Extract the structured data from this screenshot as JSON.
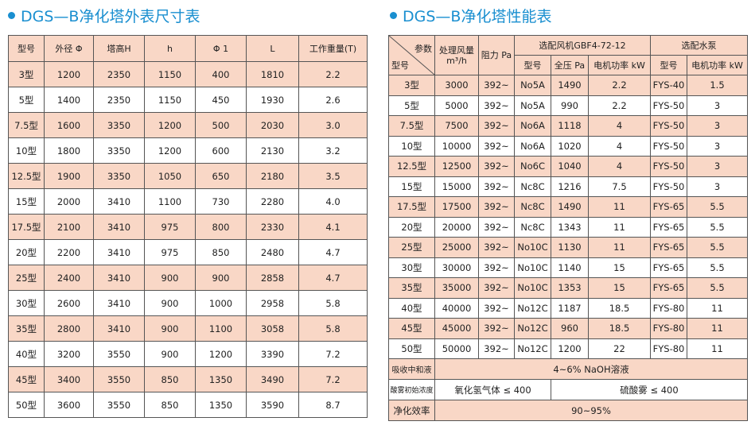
{
  "table1": {
    "title": "DGS—B净化塔外表尺寸表",
    "headers": [
      "型号",
      "外径 Φ",
      "塔高H",
      "h",
      "Φ 1",
      "L",
      "工作重量(T)"
    ],
    "rows": [
      [
        "3型",
        "1200",
        "2350",
        "1150",
        "400",
        "1810",
        "2.2"
      ],
      [
        "5型",
        "1400",
        "2350",
        "1150",
        "450",
        "1930",
        "2.6"
      ],
      [
        "7.5型",
        "1600",
        "3350",
        "1200",
        "500",
        "2030",
        "3.0"
      ],
      [
        "10型",
        "1800",
        "3350",
        "1200",
        "600",
        "2130",
        "3.2"
      ],
      [
        "12.5型",
        "1900",
        "3350",
        "1050",
        "650",
        "2180",
        "3.5"
      ],
      [
        "15型",
        "2000",
        "3410",
        "1100",
        "730",
        "2280",
        "4.0"
      ],
      [
        "17.5型",
        "2100",
        "3410",
        "975",
        "800",
        "2330",
        "4.1"
      ],
      [
        "20型",
        "2200",
        "3410",
        "975",
        "850",
        "2480",
        "4.7"
      ],
      [
        "25型",
        "2400",
        "3410",
        "900",
        "900",
        "2858",
        "4.7"
      ],
      [
        "30型",
        "2600",
        "3410",
        "900",
        "1000",
        "2958",
        "5.8"
      ],
      [
        "35型",
        "2800",
        "3410",
        "900",
        "1100",
        "3058",
        "5.8"
      ],
      [
        "40型",
        "3200",
        "3550",
        "900",
        "1200",
        "3390",
        "7.2"
      ],
      [
        "45型",
        "3400",
        "3550",
        "850",
        "1350",
        "3490",
        "7.2"
      ],
      [
        "50型",
        "3600",
        "3550",
        "850",
        "1350",
        "3590",
        "8.7"
      ]
    ]
  },
  "table2": {
    "title": "DGS—B净化塔性能表",
    "corner_top": "参数",
    "corner_bottom": "型号",
    "col_air": "处理风量 m³/h",
    "col_resist": "阻力 Pa",
    "group_fan": "选配风机GBF4-72-12",
    "group_pump": "选配水泵",
    "sub_headers": [
      "型号",
      "全压 Pa",
      "电机功率 kW",
      "型号",
      "电机功率 kW"
    ],
    "rows": [
      [
        "3型",
        "3000",
        "392~",
        "No5A",
        "1490",
        "2.2",
        "FYS-40",
        "1.5"
      ],
      [
        "5型",
        "5000",
        "392~",
        "No5A",
        "990",
        "2.2",
        "FYS-50",
        "3"
      ],
      [
        "7.5型",
        "7500",
        "392~",
        "No6A",
        "1118",
        "4",
        "FYS-50",
        "3"
      ],
      [
        "10型",
        "10000",
        "392~",
        "No6A",
        "1020",
        "4",
        "FYS-50",
        "3"
      ],
      [
        "12.5型",
        "12500",
        "392~",
        "No6C",
        "1040",
        "4",
        "FYS-50",
        "3"
      ],
      [
        "15型",
        "15000",
        "392~",
        "Nc8C",
        "1216",
        "7.5",
        "FYS-50",
        "3"
      ],
      [
        "17.5型",
        "17500",
        "392~",
        "Nc8C",
        "1490",
        "11",
        "FYS-65",
        "5.5"
      ],
      [
        "20型",
        "20000",
        "392~",
        "Nc8C",
        "1343",
        "11",
        "FYS-65",
        "5.5"
      ],
      [
        "25型",
        "25000",
        "392~",
        "No10C",
        "1130",
        "11",
        "FYS-65",
        "5.5"
      ],
      [
        "30型",
        "30000",
        "392~",
        "No10C",
        "1140",
        "15",
        "FYS-65",
        "5.5"
      ],
      [
        "35型",
        "35000",
        "392~",
        "No10C",
        "1353",
        "15",
        "FYS-65",
        "5.5"
      ],
      [
        "40型",
        "40000",
        "392~",
        "No12C",
        "1187",
        "18.5",
        "FYS-80",
        "11"
      ],
      [
        "45型",
        "45000",
        "392~",
        "No12C",
        "960",
        "18.5",
        "FYS-80",
        "11"
      ],
      [
        "50型",
        "50000",
        "392~",
        "No12C",
        "1200",
        "22",
        "FYS-80",
        "11"
      ]
    ],
    "absorb_label": "吸收中和液",
    "absorb_value": "4~6% NaOH溶液",
    "init_label": "酸雾初始浓度",
    "init_value1": "氧化氢气体 ≤ 400",
    "init_value2": "硫酸雾 ≤ 400",
    "eff_label": "净化效率",
    "eff_value": "90~95%"
  }
}
